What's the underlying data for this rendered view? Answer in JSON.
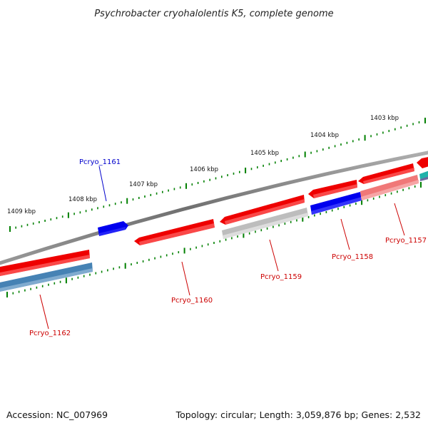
{
  "title": "Psychrobacter cryohalolentis K5, complete genome",
  "accession": "Accession: NC_007969",
  "topology": "Topology: circular; Length: 3,059,876 bp; Genes: 2,532",
  "colors": {
    "backbone": "#808080",
    "tick": "#008000",
    "forward_gene": "#ff0000",
    "reverse_gene": "#0000ff",
    "pseudo_gene": "#c0c0c0",
    "rna_gene": "#4682b4",
    "faded_gene": "#f08080",
    "cyan_gene": "#20b2aa",
    "label_forward": "#cc0000",
    "label_reverse": "#0000cc"
  },
  "kbp_labels": [
    {
      "label": "1403 kbp"
    },
    {
      "label": "1404 kbp"
    },
    {
      "label": "1405 kbp"
    },
    {
      "label": "1406 kbp"
    },
    {
      "label": "1407 kbp"
    },
    {
      "label": "1408 kbp"
    },
    {
      "label": "1409 kbp"
    }
  ],
  "gene_labels": [
    {
      "label": "Pcryo_1157"
    },
    {
      "label": "Pcryo_1158"
    },
    {
      "label": "Pcryo_1159"
    },
    {
      "label": "Pcryo_1160"
    },
    {
      "label": "Pcryo_1161"
    },
    {
      "label": "Pcryo_1162"
    }
  ]
}
